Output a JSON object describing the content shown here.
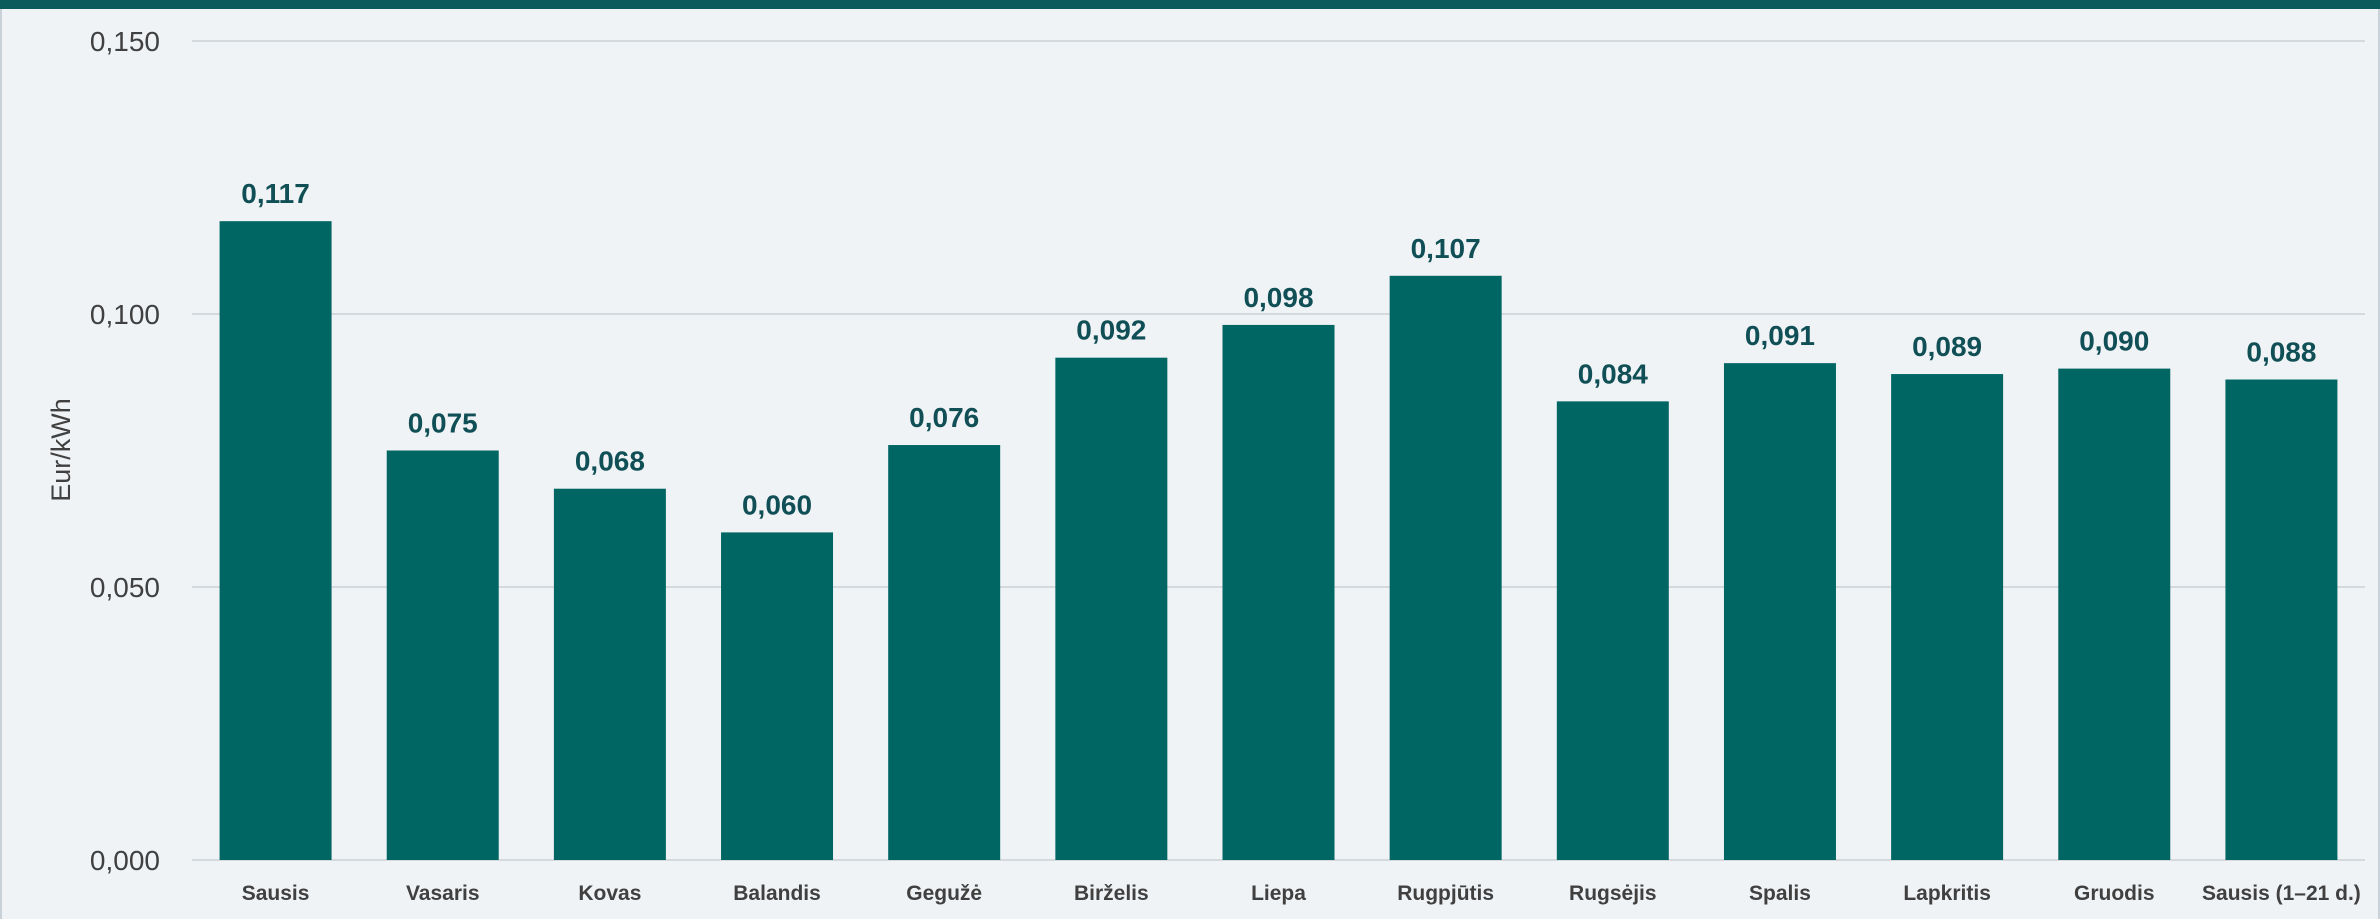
{
  "chart_data": {
    "type": "bar",
    "title": "",
    "xlabel": "",
    "ylabel": "Eur/kWh",
    "ylim": [
      0,
      0.15
    ],
    "yticks": [
      "0,000",
      "0,050",
      "0,100",
      "0,150"
    ],
    "grid": true,
    "legend": "none",
    "categories": [
      "Sausis",
      "Vasaris",
      "Kovas",
      "Balandis",
      "Gegužė",
      "Birželis",
      "Liepa",
      "Rugpjūtis",
      "Rugsėjis",
      "Spalis",
      "Lapkritis",
      "Gruodis",
      "Sausis (1–21 d.)"
    ],
    "values": [
      0.117,
      0.075,
      0.068,
      0.06,
      0.076,
      0.092,
      0.098,
      0.107,
      0.084,
      0.091,
      0.089,
      0.09,
      0.088
    ],
    "data_labels": [
      "0,117",
      "0,075",
      "0,068",
      "0,060",
      "0,076",
      "0,092",
      "0,098",
      "0,107",
      "0,084",
      "0,091",
      "0,089",
      "0,090",
      "0,088"
    ],
    "colors": {
      "bar": "#006663",
      "accent": "#0b5a5c",
      "grid": "#d4d9de",
      "label": "#0f4f55"
    }
  }
}
